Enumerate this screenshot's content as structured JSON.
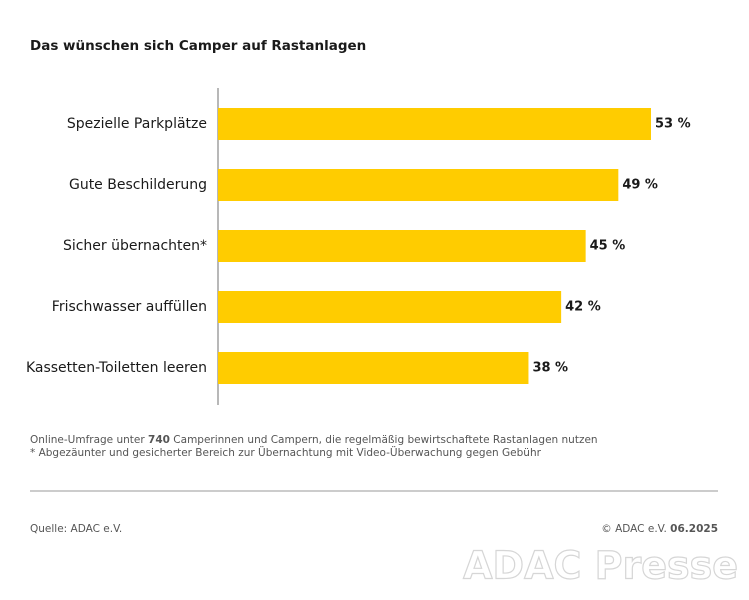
{
  "chart_data": {
    "type": "bar",
    "orientation": "horizontal",
    "title": "Das wünschen sich Camper auf Rastanlagen",
    "categories": [
      "Spezielle Parkplätze",
      "Gute Beschilderung",
      "Sicher übernachten*",
      "Frischwasser auffüllen",
      "Kassetten-Toiletten leeren"
    ],
    "values": [
      53,
      49,
      45,
      42,
      38
    ],
    "value_labels": [
      "53 %",
      "49 %",
      "45 %",
      "42 %",
      "38 %"
    ],
    "color": "#ffcc00",
    "notes": [
      "Online-Umfrage unter",
      "740",
      "Camperinnen und Campern, die regelmäßig bewirtschaftete Rastanlagen nutzen"
    ],
    "footnote": "* Abgezäunter und gesicherter Bereich zur Übernachtung mit Video-Überwachung gegen Gebühr",
    "source": "Quelle: ADAC e.V.",
    "copyright": "© ADAC e.V.",
    "date": "06.2025",
    "watermark": "ADAC Presse"
  }
}
